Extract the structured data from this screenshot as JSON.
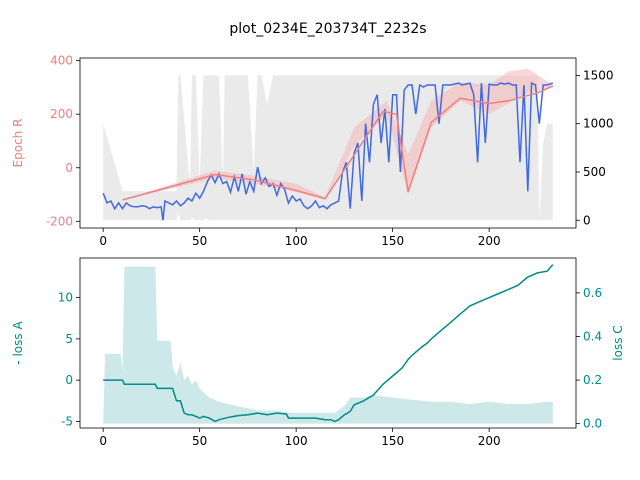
{
  "title": "plot_0234E_203734T_2232s",
  "colors": {
    "epoch_r": "#f08080",
    "epoch_r_band": "#f4b6b6",
    "blue_series": "#4169e1",
    "gray_band": "#d9d9d9",
    "loss": "#008b8b",
    "loss_band": "#b0dcdc",
    "axis": "#000000"
  },
  "chart_data": [
    {
      "type": "line",
      "title": "",
      "xlim": [
        -12,
        245
      ],
      "xticks": [
        0,
        50,
        100,
        150,
        200
      ],
      "left_axis": {
        "label": "Epoch R",
        "color": "#f08080",
        "ylim": [
          -225,
          410
        ],
        "ticks": [
          -200,
          0,
          200,
          400
        ]
      },
      "right_axis": {
        "label": "",
        "ylim": [
          -80,
          1680
        ],
        "ticks": [
          0,
          500,
          1000,
          1500
        ]
      },
      "series": [
        {
          "axis": "right",
          "kind": "band",
          "color": "#d9d9d9",
          "x": [
            0,
            10,
            20,
            30,
            38,
            39,
            40,
            45,
            46,
            48,
            50,
            52,
            53,
            55,
            58,
            60,
            62,
            63,
            66,
            68,
            70,
            72,
            75,
            78,
            80,
            82,
            85,
            88,
            90,
            92,
            95,
            98,
            100,
            102,
            105,
            108,
            110,
            112,
            115,
            118,
            120,
            125,
            130,
            135,
            140,
            145,
            150,
            155,
            160,
            165,
            170,
            175,
            180,
            185,
            190,
            195,
            200,
            205,
            210,
            215,
            220,
            225,
            226,
            228,
            230,
            233
          ],
          "low": [
            0,
            0,
            0,
            0,
            0,
            80,
            0,
            0,
            30,
            0,
            0,
            0,
            20,
            0,
            0,
            0,
            0,
            0,
            0,
            0,
            0,
            0,
            0,
            0,
            0,
            0,
            0,
            0,
            0,
            0,
            0,
            0,
            0,
            0,
            0,
            0,
            0,
            0,
            0,
            0,
            0,
            0,
            0,
            0,
            0,
            0,
            0,
            0,
            0,
            0,
            0,
            0,
            0,
            0,
            0,
            0,
            0,
            0,
            0,
            0,
            0,
            0,
            0,
            0,
            0,
            0
          ],
          "high": [
            1000,
            300,
            300,
            300,
            300,
            1500,
            1500,
            350,
            1500,
            1500,
            400,
            1500,
            1500,
            1500,
            1500,
            1500,
            380,
            1500,
            1500,
            1500,
            1500,
            1500,
            1500,
            500,
            1500,
            1500,
            1200,
            1500,
            1500,
            1500,
            1500,
            1500,
            1500,
            1500,
            1500,
            1500,
            1500,
            1500,
            1500,
            1500,
            1500,
            1500,
            1500,
            1500,
            1500,
            1500,
            1500,
            1500,
            1500,
            1500,
            1500,
            1500,
            1500,
            1500,
            1500,
            1500,
            1500,
            1500,
            1500,
            1500,
            1500,
            1500,
            0,
            800,
            1000,
            1000
          ]
        },
        {
          "axis": "right",
          "kind": "line",
          "color": "#4169e1",
          "x": [
            0,
            2,
            4,
            6,
            8,
            10,
            12,
            14,
            16,
            18,
            20,
            22,
            24,
            26,
            28,
            30,
            31,
            32,
            34,
            36,
            38,
            40,
            42,
            44,
            46,
            48,
            50,
            52,
            54,
            56,
            58,
            60,
            62,
            64,
            66,
            68,
            70,
            72,
            74,
            76,
            78,
            80,
            82,
            84,
            86,
            88,
            90,
            92,
            94,
            96,
            98,
            100,
            102,
            104,
            106,
            108,
            110,
            112,
            114,
            116,
            118,
            120,
            122,
            124,
            126,
            128,
            130,
            132,
            134,
            136,
            138,
            140,
            142,
            144,
            146,
            148,
            150,
            152,
            154,
            156,
            158,
            160,
            162,
            164,
            166,
            168,
            170,
            172,
            174,
            176,
            178,
            180,
            182,
            184,
            186,
            188,
            190,
            192,
            194,
            196,
            198,
            200,
            202,
            204,
            206,
            208,
            210,
            212,
            214,
            216,
            218,
            220,
            222,
            224,
            226,
            228,
            230,
            233
          ],
          "y": [
            280,
            180,
            200,
            120,
            180,
            120,
            180,
            150,
            140,
            140,
            150,
            145,
            120,
            140,
            130,
            140,
            0,
            200,
            180,
            160,
            200,
            150,
            180,
            230,
            200,
            280,
            230,
            300,
            400,
            470,
            390,
            480,
            380,
            400,
            290,
            450,
            300,
            480,
            270,
            400,
            300,
            550,
            380,
            440,
            350,
            380,
            260,
            380,
            320,
            180,
            250,
            200,
            220,
            150,
            120,
            150,
            200,
            130,
            150,
            120,
            160,
            180,
            200,
            500,
            600,
            120,
            700,
            800,
            200,
            1000,
            600,
            1200,
            1300,
            800,
            1150,
            600,
            1300,
            1300,
            500,
            1350,
            1400,
            1400,
            1100,
            1400,
            1380,
            1400,
            1400,
            1400,
            1000,
            1400,
            1400,
            1400,
            1410,
            1420,
            1400,
            1410,
            1420,
            1300,
            600,
            1420,
            800,
            1410,
            1400,
            1400,
            1420,
            1410,
            1420,
            1400,
            1400,
            600,
            1400,
            300,
            1420,
            1400,
            1000,
            1400,
            1400,
            1420
          ]
        },
        {
          "axis": "left",
          "kind": "band",
          "color": "#f4b6b6",
          "x": [
            10,
            58,
            78,
            100,
            115,
            130,
            147,
            158,
            170,
            185,
            200,
            210,
            220,
            233
          ],
          "low": [
            -120,
            -40,
            -60,
            -90,
            -120,
            80,
            200,
            -100,
            150,
            250,
            200,
            240,
            280,
            300
          ],
          "high": [
            -120,
            -10,
            -30,
            -60,
            -110,
            150,
            250,
            50,
            250,
            320,
            310,
            360,
            370,
            310
          ]
        },
        {
          "axis": "left",
          "kind": "line",
          "color": "#f08080",
          "x": [
            10,
            58,
            78,
            100,
            115,
            145,
            152,
            158,
            170,
            185,
            200,
            210,
            225,
            233
          ],
          "y": [
            -120,
            -25,
            -45,
            -85,
            -115,
            210,
            200,
            -90,
            170,
            260,
            240,
            250,
            280,
            305
          ]
        }
      ]
    },
    {
      "type": "line",
      "title": "",
      "xlim": [
        -12,
        245
      ],
      "xticks": [
        0,
        50,
        100,
        150,
        200
      ],
      "left_axis": {
        "label": "- loss A",
        "color": "#008b8b",
        "ylim": [
          -5.8,
          14.8
        ],
        "ticks": [
          -5,
          0,
          5,
          10
        ]
      },
      "right_axis": {
        "label": "loss C",
        "color": "#008b8b",
        "ylim": [
          -0.02,
          0.76
        ],
        "ticks": [
          0.0,
          0.2,
          0.4,
          0.6
        ]
      },
      "series": [
        {
          "axis": "right",
          "kind": "area",
          "color": "#b0dcdc",
          "x": [
            0,
            1,
            9,
            10,
            11,
            27,
            28,
            30,
            35,
            36,
            38,
            40,
            42,
            44,
            46,
            48,
            50,
            55,
            60,
            70,
            80,
            90,
            96,
            97,
            100,
            110,
            120,
            125,
            128,
            130,
            135,
            140,
            150,
            160,
            170,
            180,
            190,
            200,
            210,
            220,
            230,
            233
          ],
          "y": [
            0.01,
            0.32,
            0.32,
            0.24,
            0.72,
            0.72,
            0.38,
            0.38,
            0.38,
            0.26,
            0.22,
            0.28,
            0.2,
            0.22,
            0.18,
            0.2,
            0.16,
            0.12,
            0.1,
            0.08,
            0.06,
            0.06,
            0.05,
            0.05,
            0.05,
            0.05,
            0.05,
            0.08,
            0.12,
            0.12,
            0.12,
            0.13,
            0.12,
            0.11,
            0.1,
            0.1,
            0.09,
            0.1,
            0.09,
            0.09,
            0.1,
            0.1
          ]
        },
        {
          "axis": "left",
          "kind": "line",
          "color": "#008b8b",
          "x": [
            0,
            10,
            11,
            27,
            28,
            36,
            38,
            40,
            42,
            44,
            46,
            50,
            52,
            55,
            58,
            60,
            65,
            70,
            75,
            80,
            85,
            90,
            95,
            96,
            100,
            110,
            115,
            118,
            120,
            122,
            125,
            128,
            130,
            135,
            140,
            145,
            150,
            155,
            158,
            160,
            165,
            168,
            170,
            175,
            180,
            185,
            190,
            195,
            200,
            205,
            210,
            215,
            220,
            225,
            230,
            233
          ],
          "y": [
            0,
            0,
            -0.5,
            -0.5,
            -1.0,
            -1.0,
            -2.5,
            -2.5,
            -4.0,
            -4.2,
            -4.2,
            -4.6,
            -4.4,
            -4.6,
            -5.0,
            -4.8,
            -4.5,
            -4.3,
            -4.2,
            -4.0,
            -4.2,
            -4.0,
            -4.1,
            -4.6,
            -4.6,
            -4.6,
            -4.8,
            -4.8,
            -5.0,
            -4.8,
            -4.2,
            -3.8,
            -3.0,
            -2.5,
            -1.8,
            -0.5,
            0.5,
            1.5,
            2.5,
            3.0,
            4.0,
            4.5,
            5.0,
            6.0,
            7.0,
            8.0,
            9.0,
            9.5,
            10.0,
            10.5,
            11.0,
            11.5,
            12.5,
            13.0,
            13.2,
            14.0
          ]
        }
      ]
    }
  ]
}
